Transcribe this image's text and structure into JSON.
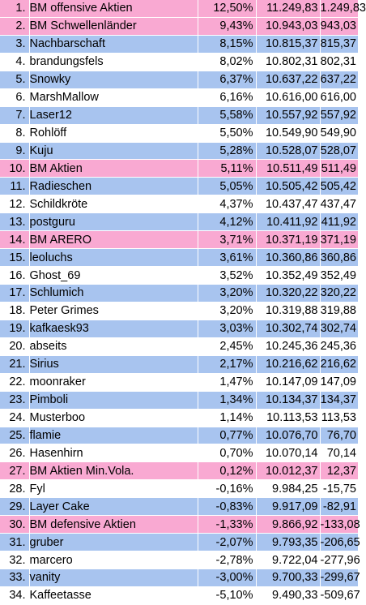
{
  "colors": {
    "pink": "#f9a9d2",
    "blue": "#a8c4ef",
    "white": "#ffffff"
  },
  "rows": [
    {
      "rank": "1.",
      "name": "BM offensive Aktien",
      "pct": "12,50%",
      "value": "11.249,83",
      "gain": "1.249,83",
      "color": "pink"
    },
    {
      "rank": "2.",
      "name": "BM Schwellenländer",
      "pct": "9,43%",
      "value": "10.943,03",
      "gain": "943,03",
      "color": "pink"
    },
    {
      "rank": "3.",
      "name": "Nachbarschaft",
      "pct": "8,15%",
      "value": "10.815,37",
      "gain": "815,37",
      "color": "blue"
    },
    {
      "rank": "4.",
      "name": "brandungsfels",
      "pct": "8,02%",
      "value": "10.802,31",
      "gain": "802,31",
      "color": "white"
    },
    {
      "rank": "5.",
      "name": "Snowky",
      "pct": "6,37%",
      "value": "10.637,22",
      "gain": "637,22",
      "color": "blue"
    },
    {
      "rank": "6.",
      "name": "MarshMallow",
      "pct": "6,16%",
      "value": "10.616,00",
      "gain": "616,00",
      "color": "white"
    },
    {
      "rank": "7.",
      "name": "Laser12",
      "pct": "5,58%",
      "value": "10.557,92",
      "gain": "557,92",
      "color": "blue"
    },
    {
      "rank": "8.",
      "name": "Rohlöff",
      "pct": "5,50%",
      "value": "10.549,90",
      "gain": "549,90",
      "color": "white"
    },
    {
      "rank": "9.",
      "name": "Kuju",
      "pct": "5,28%",
      "value": "10.528,07",
      "gain": "528,07",
      "color": "blue"
    },
    {
      "rank": "10.",
      "name": "BM Aktien",
      "pct": "5,11%",
      "value": "10.511,49",
      "gain": "511,49",
      "color": "pink"
    },
    {
      "rank": "11.",
      "name": "Radieschen",
      "pct": "5,05%",
      "value": "10.505,42",
      "gain": "505,42",
      "color": "blue"
    },
    {
      "rank": "12.",
      "name": "Schildkröte",
      "pct": "4,37%",
      "value": "10.437,47",
      "gain": "437,47",
      "color": "white"
    },
    {
      "rank": "13.",
      "name": "postguru",
      "pct": "4,12%",
      "value": "10.411,92",
      "gain": "411,92",
      "color": "blue"
    },
    {
      "rank": "14.",
      "name": "BM ARERO",
      "pct": "3,71%",
      "value": "10.371,19",
      "gain": "371,19",
      "color": "pink"
    },
    {
      "rank": "15.",
      "name": "leoluchs",
      "pct": "3,61%",
      "value": "10.360,86",
      "gain": "360,86",
      "color": "blue"
    },
    {
      "rank": "16.",
      "name": "Ghost_69",
      "pct": "3,52%",
      "value": "10.352,49",
      "gain": "352,49",
      "color": "white"
    },
    {
      "rank": "17.",
      "name": "Schlumich",
      "pct": "3,20%",
      "value": "10.320,22",
      "gain": "320,22",
      "color": "blue"
    },
    {
      "rank": "18.",
      "name": "Peter Grimes",
      "pct": "3,20%",
      "value": "10.319,88",
      "gain": "319,88",
      "color": "white"
    },
    {
      "rank": "19.",
      "name": "kafkaesk93",
      "pct": "3,03%",
      "value": "10.302,74",
      "gain": "302,74",
      "color": "blue"
    },
    {
      "rank": "20.",
      "name": "abseits",
      "pct": "2,45%",
      "value": "10.245,36",
      "gain": "245,36",
      "color": "white"
    },
    {
      "rank": "21.",
      "name": "Sirius",
      "pct": "2,17%",
      "value": "10.216,62",
      "gain": "216,62",
      "color": "blue"
    },
    {
      "rank": "22.",
      "name": "moonraker",
      "pct": "1,47%",
      "value": "10.147,09",
      "gain": "147,09",
      "color": "white"
    },
    {
      "rank": "23.",
      "name": "Pimboli",
      "pct": "1,34%",
      "value": "10.134,37",
      "gain": "134,37",
      "color": "blue"
    },
    {
      "rank": "24.",
      "name": "Musterboo",
      "pct": "1,14%",
      "value": "10.113,53",
      "gain": "113,53",
      "color": "white"
    },
    {
      "rank": "25.",
      "name": "flamie",
      "pct": "0,77%",
      "value": "10.076,70",
      "gain": "76,70",
      "color": "blue"
    },
    {
      "rank": "26.",
      "name": "Hasenhirn",
      "pct": "0,70%",
      "value": "10.070,14",
      "gain": "70,14",
      "color": "white"
    },
    {
      "rank": "27.",
      "name": "BM Aktien Min.Vola.",
      "pct": "0,12%",
      "value": "10.012,37",
      "gain": "12,37",
      "color": "pink"
    },
    {
      "rank": "28.",
      "name": "Fyl",
      "pct": "-0,16%",
      "value": "9.984,25",
      "gain": "-15,75",
      "color": "white"
    },
    {
      "rank": "29.",
      "name": "Layer Cake",
      "pct": "-0,83%",
      "value": "9.917,09",
      "gain": "-82,91",
      "color": "blue"
    },
    {
      "rank": "30.",
      "name": "BM defensive Aktien",
      "pct": "-1,33%",
      "value": "9.866,92",
      "gain": "-133,08",
      "color": "pink"
    },
    {
      "rank": "31.",
      "name": "gruber",
      "pct": "-2,07%",
      "value": "9.793,35",
      "gain": "-206,65",
      "color": "blue"
    },
    {
      "rank": "32.",
      "name": "marcero",
      "pct": "-2,78%",
      "value": "9.722,04",
      "gain": "-277,96",
      "color": "white"
    },
    {
      "rank": "33.",
      "name": "vanity",
      "pct": "-3,00%",
      "value": "9.700,33",
      "gain": "-299,67",
      "color": "blue"
    },
    {
      "rank": "34.",
      "name": "Kaffeetasse",
      "pct": "-5,10%",
      "value": "9.490,33",
      "gain": "-509,67",
      "color": "white"
    }
  ]
}
